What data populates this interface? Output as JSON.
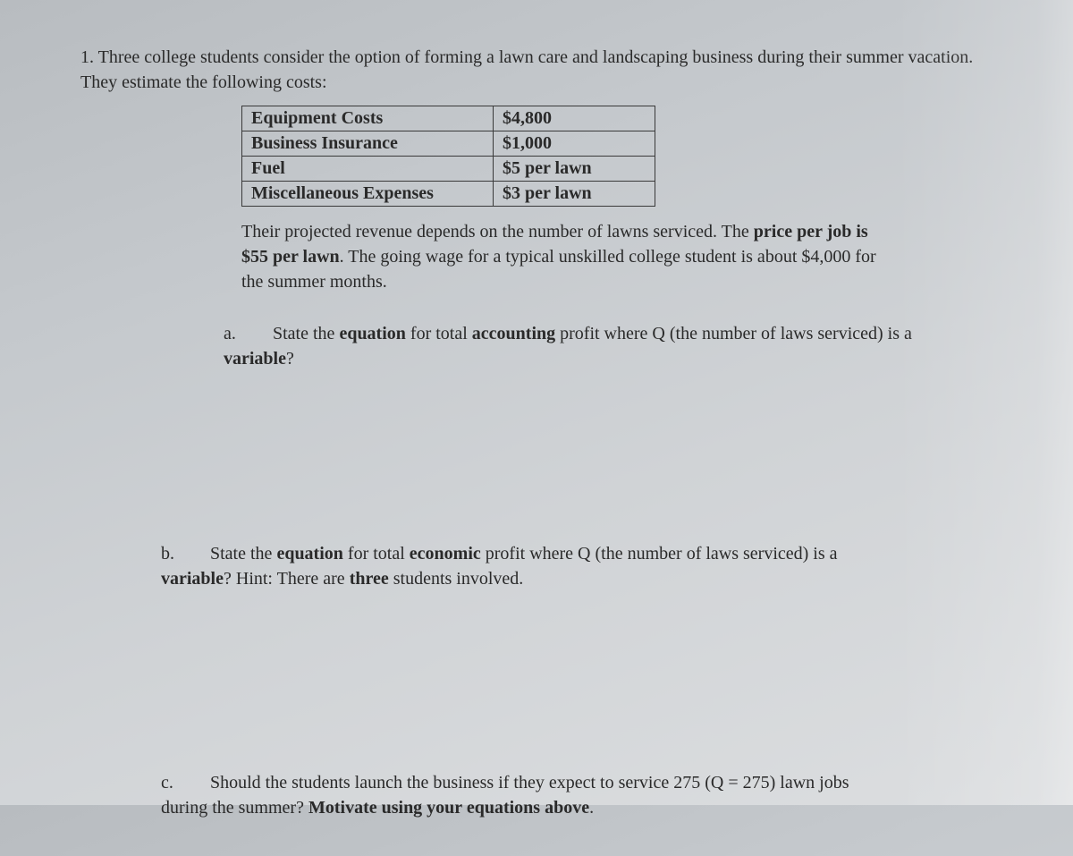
{
  "problem": {
    "number": "1.",
    "intro": "Three college students consider the option of forming a lawn care and landscaping business during their summer vacation. They estimate the following costs:",
    "cost_table": {
      "rows": [
        {
          "label": "Equipment Costs",
          "value": "$4,800"
        },
        {
          "label": "Business Insurance",
          "value": "$1,000"
        },
        {
          "label": "Fuel",
          "value": "$5 per lawn"
        },
        {
          "label": "Miscellaneous Expenses",
          "value": "$3 per lawn"
        }
      ]
    },
    "revenue_note_1": "Their projected revenue depends on the number of lawns serviced. The ",
    "revenue_note_bold1": "price per job is $55 per lawn",
    "revenue_note_2": ". The going wage for a typical unskilled college student is about $4,000 for the summer months.",
    "part_a": {
      "label": "a.",
      "text_1": "State the ",
      "bold_1": "equation",
      "text_2": " for total ",
      "bold_2": "accounting",
      "text_3": " profit where Q (the number of laws serviced) is a ",
      "bold_3": "variable",
      "text_4": "?"
    },
    "part_b": {
      "label": "b.",
      "text_1": "State the ",
      "bold_1": "equation",
      "text_2": " for total ",
      "bold_2": "economic",
      "text_3": " profit where Q (the number of laws serviced) is a ",
      "bold_3": "variable",
      "text_4": "? Hint: There are ",
      "bold_4": "three",
      "text_5": " students involved."
    },
    "part_c": {
      "label": "c.",
      "text_1": "Should the students launch the business if they expect to service 275 (Q = 275) lawn jobs during the summer? ",
      "bold_1": "Motivate using your equations above",
      "text_2": "."
    }
  }
}
